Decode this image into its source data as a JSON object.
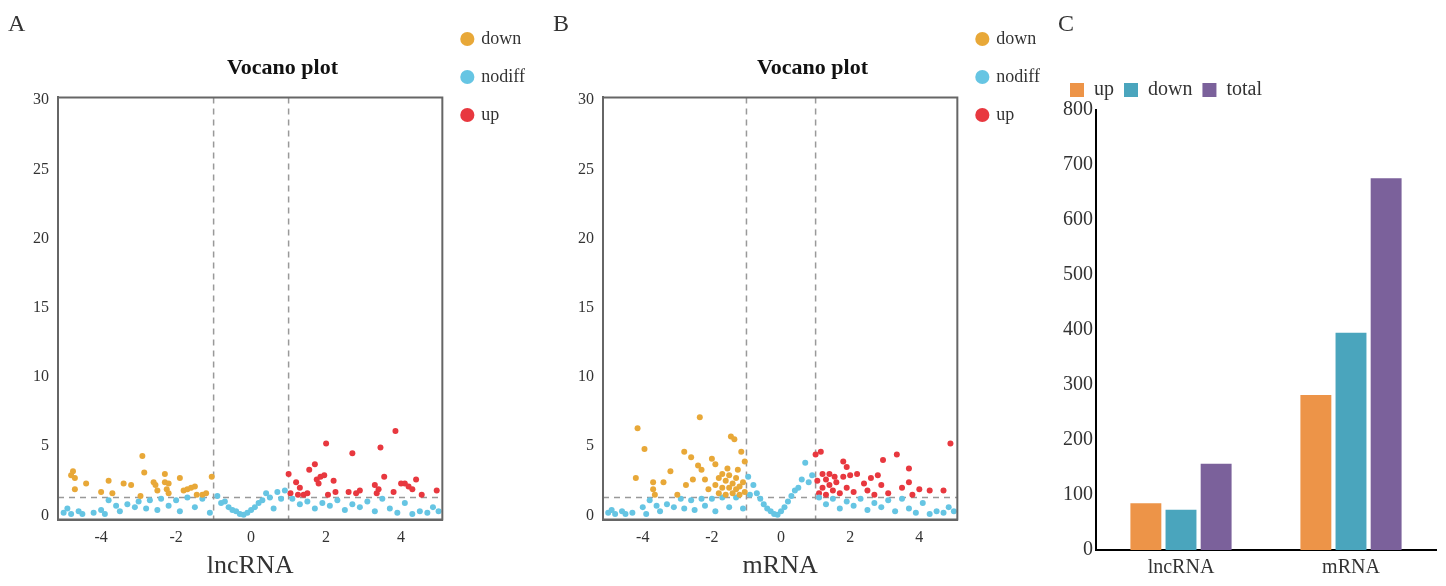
{
  "chart_data": [
    {
      "type": "scatter",
      "title": "Vocano plot",
      "xlabel": "lncRNA",
      "annotations": [
        "A"
      ],
      "xlim": [
        -5.15,
        5.1
      ],
      "ylim": [
        -0.3,
        30.2
      ],
      "xticks": [
        -4,
        -2,
        0,
        2,
        4
      ],
      "yticks": [
        0,
        5,
        10,
        15,
        20,
        25,
        30
      ],
      "grid": false,
      "legend": "right",
      "marker": "circle",
      "ref_lines": [
        {
          "axis": "x",
          "value": -1,
          "color": "#999999",
          "line_style": "dashed"
        },
        {
          "axis": "x",
          "value": 1,
          "color": "#999999",
          "line_style": "dashed"
        },
        {
          "axis": "y",
          "value": 1.3,
          "color": "#999999",
          "line_style": "dashed"
        }
      ],
      "series": [
        {
          "name": "down",
          "color": "#e8a838",
          "x": [
            -4.75,
            -4.8,
            -4.7,
            -4.7,
            -4.4,
            -4.0,
            -3.8,
            -3.7,
            -3.4,
            -3.2,
            -2.95,
            -2.9,
            -2.85,
            -2.6,
            -2.55,
            -2.5,
            -2.3,
            -2.3,
            -2.25,
            -2.2,
            -2.2,
            -1.9,
            -1.8,
            -1.7,
            -1.6,
            -1.5,
            -1.45,
            -1.3,
            -1.2,
            -1.05
          ],
          "values": [
            3.2,
            2.9,
            2.7,
            1.9,
            2.3,
            1.7,
            2.5,
            1.6,
            2.3,
            2.2,
            1.4,
            4.3,
            3.1,
            2.4,
            2.2,
            1.8,
            3.0,
            2.4,
            1.9,
            1.6,
            2.3,
            2.7,
            1.8,
            1.9,
            2.0,
            2.1,
            1.5,
            1.5,
            1.6,
            2.8
          ]
        },
        {
          "name": "nodiff",
          "color": "#66c5e3",
          "x": [
            -5.0,
            -4.9,
            -4.8,
            -4.6,
            -4.5,
            -4.2,
            -4.0,
            -3.9,
            -3.8,
            -3.6,
            -3.5,
            -3.3,
            -3.1,
            -3.0,
            -2.8,
            -2.7,
            -2.5,
            -2.4,
            -2.2,
            -2.0,
            -1.9,
            -1.7,
            -1.5,
            -1.3,
            -1.1,
            -0.9,
            -0.8,
            -0.7,
            -0.6,
            -0.5,
            -0.4,
            -0.3,
            -0.2,
            -0.1,
            0.0,
            0.1,
            0.2,
            0.3,
            0.4,
            0.5,
            0.6,
            0.7,
            0.8,
            0.9,
            1.1,
            1.3,
            1.5,
            1.7,
            1.9,
            2.1,
            2.3,
            2.5,
            2.7,
            2.9,
            3.1,
            3.3,
            3.5,
            3.7,
            3.9,
            4.1,
            4.3,
            4.5,
            4.7,
            4.85,
            5.0
          ],
          "values": [
            0.2,
            0.5,
            0.1,
            0.3,
            0.1,
            0.2,
            0.4,
            0.1,
            1.1,
            0.7,
            0.3,
            0.8,
            0.6,
            1.0,
            0.5,
            1.1,
            0.4,
            1.2,
            0.7,
            1.1,
            0.3,
            1.3,
            0.6,
            1.2,
            0.2,
            1.4,
            0.9,
            1.0,
            0.6,
            0.4,
            0.3,
            0.1,
            0.05,
            0.2,
            0.4,
            0.6,
            0.9,
            1.1,
            1.6,
            1.3,
            0.5,
            1.7,
            1.2,
            1.8,
            1.2,
            0.8,
            1.0,
            0.5,
            0.9,
            0.7,
            1.1,
            0.4,
            0.8,
            0.6,
            1.0,
            0.3,
            1.2,
            0.5,
            0.2,
            0.9,
            0.1,
            0.3,
            0.2,
            0.6,
            0.3
          ]
        },
        {
          "name": "up",
          "color": "#e8383f",
          "x": [
            1.0,
            1.05,
            1.2,
            1.25,
            1.3,
            1.4,
            1.5,
            1.55,
            1.7,
            1.75,
            1.8,
            1.85,
            1.95,
            2.0,
            2.05,
            2.2,
            2.25,
            2.6,
            2.7,
            2.8,
            2.9,
            3.3,
            3.35,
            3.4,
            3.45,
            3.55,
            3.8,
            3.85,
            4.0,
            4.1,
            4.2,
            4.3,
            4.4,
            4.55,
            4.95
          ],
          "values": [
            3.0,
            1.6,
            2.4,
            1.5,
            2.0,
            1.5,
            1.6,
            3.3,
            3.7,
            2.6,
            2.3,
            2.8,
            2.9,
            5.2,
            1.5,
            2.5,
            1.7,
            1.7,
            4.5,
            1.6,
            1.8,
            2.2,
            1.6,
            1.9,
            4.9,
            2.8,
            1.7,
            6.1,
            2.3,
            2.3,
            2.1,
            1.9,
            2.6,
            1.5,
            1.8
          ]
        }
      ]
    },
    {
      "type": "scatter",
      "title": "Vocano plot",
      "xlabel": "mRNA",
      "annotations": [
        "B"
      ],
      "xlim": [
        -5.15,
        5.1
      ],
      "ylim": [
        -0.3,
        30.2
      ],
      "xticks": [
        -4,
        -2,
        0,
        2,
        4
      ],
      "yticks": [
        0,
        5,
        10,
        15,
        20,
        25,
        30
      ],
      "grid": false,
      "legend": "right",
      "marker": "circle",
      "ref_lines": [
        {
          "axis": "x",
          "value": -1,
          "color": "#999999",
          "line_style": "dashed"
        },
        {
          "axis": "x",
          "value": 1,
          "color": "#999999",
          "line_style": "dashed"
        },
        {
          "axis": "y",
          "value": 1.3,
          "color": "#999999",
          "line_style": "dashed"
        }
      ],
      "series": [
        {
          "name": "down",
          "color": "#e8a838",
          "x": [
            -4.15,
            -4.2,
            -3.95,
            -3.7,
            -3.7,
            -3.65,
            -3.4,
            -3.2,
            -3.0,
            -2.8,
            -2.75,
            -2.6,
            -2.55,
            -2.4,
            -2.35,
            -2.3,
            -2.2,
            -2.1,
            -2.0,
            -1.9,
            -1.9,
            -1.8,
            -1.8,
            -1.7,
            -1.7,
            -1.6,
            -1.6,
            -1.55,
            -1.5,
            -1.5,
            -1.45,
            -1.4,
            -1.4,
            -1.35,
            -1.3,
            -1.3,
            -1.25,
            -1.2,
            -1.2,
            -1.15,
            -1.1,
            -1.05,
            -1.05
          ],
          "values": [
            6.3,
            2.7,
            4.8,
            2.4,
            1.9,
            1.5,
            2.4,
            3.2,
            1.5,
            4.6,
            2.2,
            4.2,
            2.6,
            3.6,
            7.1,
            3.3,
            2.6,
            1.9,
            4.1,
            3.7,
            2.2,
            2.7,
            1.6,
            3.0,
            2.0,
            2.5,
            1.5,
            3.4,
            2.9,
            2.0,
            5.7,
            2.3,
            1.6,
            5.5,
            2.7,
            1.9,
            3.3,
            2.1,
            1.5,
            4.6,
            2.4,
            3.9,
            1.7
          ]
        },
        {
          "name": "nodiff",
          "color": "#66c5e3",
          "x": [
            -5.0,
            -4.9,
            -4.8,
            -4.6,
            -4.5,
            -4.3,
            -4.0,
            -3.9,
            -3.8,
            -3.6,
            -3.5,
            -3.3,
            -3.1,
            -2.9,
            -2.8,
            -2.6,
            -2.5,
            -2.3,
            -2.2,
            -2.0,
            -1.9,
            -1.7,
            -1.5,
            -1.3,
            -1.1,
            -0.95,
            -0.9,
            -0.8,
            -0.7,
            -0.6,
            -0.5,
            -0.4,
            -0.3,
            -0.2,
            -0.1,
            0.0,
            0.1,
            0.2,
            0.3,
            0.4,
            0.5,
            0.6,
            0.7,
            0.8,
            0.9,
            1.1,
            1.3,
            1.5,
            1.7,
            1.9,
            2.1,
            2.3,
            2.5,
            2.7,
            2.9,
            3.1,
            3.3,
            3.5,
            3.7,
            3.9,
            4.1,
            4.3,
            4.5,
            4.7,
            4.85,
            5.0
          ],
          "values": [
            0.2,
            0.4,
            0.1,
            0.3,
            0.1,
            0.2,
            0.6,
            0.1,
            1.1,
            0.7,
            0.3,
            0.8,
            0.6,
            1.2,
            0.5,
            1.1,
            0.4,
            1.2,
            0.7,
            1.2,
            0.3,
            1.3,
            0.6,
            1.3,
            0.5,
            2.8,
            1.5,
            2.2,
            1.6,
            1.2,
            0.8,
            0.5,
            0.3,
            0.1,
            0.05,
            0.3,
            0.6,
            1.0,
            1.4,
            1.8,
            2.0,
            2.6,
            3.8,
            2.4,
            2.9,
            1.3,
            0.8,
            1.2,
            0.5,
            1.0,
            0.7,
            1.2,
            0.4,
            0.9,
            0.6,
            1.1,
            0.3,
            1.2,
            0.5,
            0.2,
            0.9,
            0.1,
            0.3,
            0.2,
            0.6,
            0.3
          ]
        },
        {
          "name": "up",
          "color": "#e8383f",
          "x": [
            1.0,
            1.05,
            1.1,
            1.15,
            1.2,
            1.2,
            1.3,
            1.3,
            1.4,
            1.4,
            1.5,
            1.55,
            1.6,
            1.7,
            1.8,
            1.8,
            1.9,
            1.9,
            2.0,
            2.1,
            2.2,
            2.4,
            2.5,
            2.6,
            2.7,
            2.8,
            2.9,
            2.95,
            3.1,
            3.35,
            3.5,
            3.7,
            3.7,
            3.8,
            4.0,
            4.3,
            4.7,
            4.9
          ],
          "values": [
            4.4,
            2.5,
            1.6,
            4.6,
            3.0,
            2.0,
            2.6,
            1.5,
            3.0,
            2.2,
            1.8,
            2.8,
            2.4,
            1.6,
            3.9,
            2.8,
            3.5,
            2.0,
            2.9,
            1.7,
            3.0,
            2.3,
            1.8,
            2.7,
            1.5,
            2.9,
            2.2,
            4.0,
            1.6,
            4.4,
            2.0,
            3.4,
            2.4,
            1.5,
            1.9,
            1.8,
            1.8,
            5.2
          ]
        }
      ]
    },
    {
      "type": "bar",
      "annotations": [
        "C"
      ],
      "categories": [
        "lncRNA",
        "mRNA"
      ],
      "ylim": [
        0,
        800
      ],
      "yticks": [
        0,
        100,
        200,
        300,
        400,
        500,
        600,
        700,
        800
      ],
      "grid": false,
      "legend": "top",
      "series": [
        {
          "name": "up",
          "color": "#ed9448",
          "values": [
            85,
            282
          ]
        },
        {
          "name": "down",
          "color": "#4aa5bd",
          "values": [
            73,
            395
          ]
        },
        {
          "name": "total",
          "color": "#7b619b",
          "values": [
            157,
            676
          ]
        }
      ]
    }
  ]
}
